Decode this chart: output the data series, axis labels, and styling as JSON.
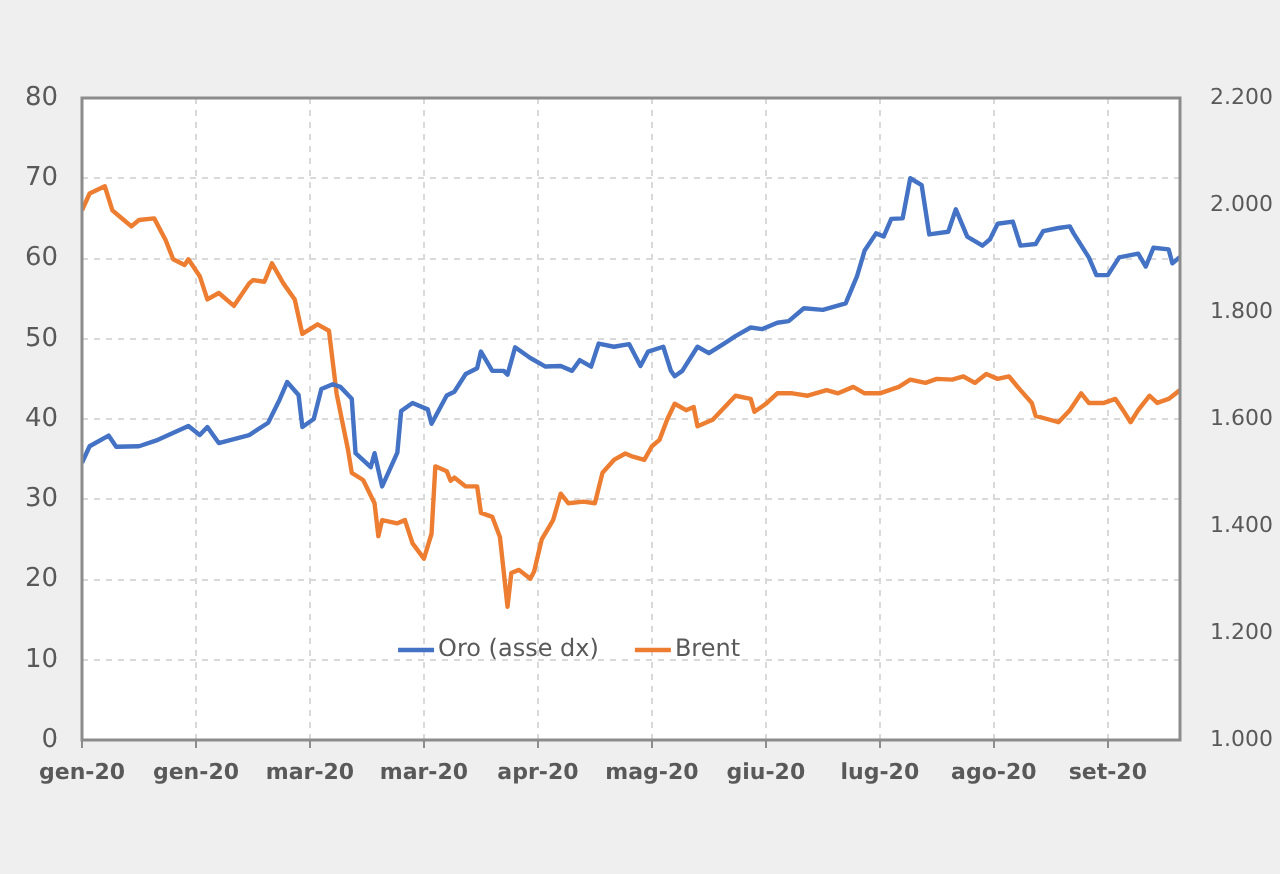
{
  "chart_data": {
    "type": "line",
    "xlim": [
      "2020-01-01",
      "2020-10-16"
    ],
    "xticks": [
      {
        "value": "2020-01-01",
        "label": "gen-20"
      },
      {
        "value": "2020-01-31",
        "label": "gen-20"
      },
      {
        "value": "2020-03-01",
        "label": "mar-20"
      },
      {
        "value": "2020-03-31",
        "label": "mar-20"
      },
      {
        "value": "2020-04-30",
        "label": "apr-20"
      },
      {
        "value": "2020-05-30",
        "label": "mag-20"
      },
      {
        "value": "2020-06-29",
        "label": "giu-20"
      },
      {
        "value": "2020-07-29",
        "label": "lug-20"
      },
      {
        "value": "2020-08-28",
        "label": "ago-20"
      },
      {
        "value": "2020-09-27",
        "label": "set-20"
      }
    ],
    "ylim": [
      0,
      80
    ],
    "yticks": [
      0,
      10,
      20,
      30,
      40,
      50,
      60,
      70,
      80
    ],
    "y2lim": [
      1000,
      2200
    ],
    "y2ticks": [
      {
        "value": 1000,
        "label": "1.000"
      },
      {
        "value": 1200,
        "label": "1.200"
      },
      {
        "value": 1400,
        "label": "1.400"
      },
      {
        "value": 1600,
        "label": "1.600"
      },
      {
        "value": 1800,
        "label": "1.800"
      },
      {
        "value": 2000,
        "label": "2.000"
      },
      {
        "value": 2200,
        "label": "2.200"
      }
    ],
    "grid": true,
    "legend": "bottom",
    "line_style": "solid",
    "marker": "none",
    "series": [
      {
        "name": "Oro (asse dx)",
        "color": "#4472c4",
        "axis": "y2",
        "x": [
          "2020-01-01",
          "2020-01-03",
          "2020-01-08",
          "2020-01-10",
          "2020-01-16",
          "2020-01-21",
          "2020-01-29",
          "2020-02-01",
          "2020-02-03",
          "2020-02-06",
          "2020-02-14",
          "2020-02-19",
          "2020-02-22",
          "2020-02-24",
          "2020-02-27",
          "2020-02-28",
          "2020-03-02",
          "2020-03-04",
          "2020-03-07",
          "2020-03-09",
          "2020-03-12",
          "2020-03-13",
          "2020-03-17",
          "2020-03-18",
          "2020-03-20",
          "2020-03-24",
          "2020-03-25",
          "2020-03-28",
          "2020-04-01",
          "2020-04-02",
          "2020-04-06",
          "2020-04-08",
          "2020-04-11",
          "2020-04-14",
          "2020-04-15",
          "2020-04-18",
          "2020-04-21",
          "2020-04-22",
          "2020-04-24",
          "2020-04-28",
          "2020-05-02",
          "2020-05-06",
          "2020-05-09",
          "2020-05-11",
          "2020-05-14",
          "2020-05-16",
          "2020-05-20",
          "2020-05-24",
          "2020-05-27",
          "2020-05-29",
          "2020-06-02",
          "2020-06-04",
          "2020-06-05",
          "2020-06-07",
          "2020-06-11",
          "2020-06-14",
          "2020-06-18",
          "2020-06-21",
          "2020-06-25",
          "2020-06-28",
          "2020-07-02",
          "2020-07-05",
          "2020-07-09",
          "2020-07-14",
          "2020-07-20",
          "2020-07-23",
          "2020-07-25",
          "2020-07-28",
          "2020-07-30",
          "2020-08-01",
          "2020-08-04",
          "2020-08-06",
          "2020-08-09",
          "2020-08-11",
          "2020-08-16",
          "2020-08-18",
          "2020-08-21",
          "2020-08-25",
          "2020-08-27",
          "2020-08-29",
          "2020-09-02",
          "2020-09-04",
          "2020-09-08",
          "2020-09-10",
          "2020-09-14",
          "2020-09-17",
          "2020-09-18",
          "2020-09-22",
          "2020-09-24",
          "2020-09-27",
          "2020-09-30",
          "2020-10-05",
          "2020-10-07",
          "2020-10-09",
          "2020-10-13",
          "2020-10-14",
          "2020-10-16"
        ],
        "values": [
          1518,
          1549,
          1569,
          1548,
          1549,
          1561,
          1587,
          1570,
          1585,
          1555,
          1570,
          1593,
          1636,
          1669,
          1645,
          1585,
          1600,
          1656,
          1665,
          1660,
          1638,
          1536,
          1510,
          1536,
          1474,
          1537,
          1615,
          1630,
          1618,
          1591,
          1644,
          1651,
          1684,
          1695,
          1726,
          1690,
          1690,
          1683,
          1734,
          1714,
          1698,
          1699,
          1690,
          1710,
          1698,
          1741,
          1735,
          1740,
          1699,
          1726,
          1735,
          1690,
          1680,
          1690,
          1735,
          1723,
          1741,
          1755,
          1771,
          1768,
          1780,
          1783,
          1807,
          1804,
          1816,
          1867,
          1915,
          1947,
          1941,
          1974,
          1975,
          2050,
          2037,
          1945,
          1950,
          1992,
          1941,
          1924,
          1936,
          1965,
          1969,
          1924,
          1927,
          1951,
          1957,
          1960,
          1947,
          1902,
          1869,
          1869,
          1902,
          1909,
          1885,
          1920,
          1917,
          1891,
          1903
        ]
      },
      {
        "name": "Brent",
        "color": "#ed7d31",
        "x": [
          "2020-01-01",
          "2020-01-03",
          "2020-01-07",
          "2020-01-09",
          "2020-01-12",
          "2020-01-14",
          "2020-01-16",
          "2020-01-20",
          "2020-01-23",
          "2020-01-25",
          "2020-01-28",
          "2020-01-29",
          "2020-02-01",
          "2020-02-03",
          "2020-02-06",
          "2020-02-10",
          "2020-02-14",
          "2020-02-15",
          "2020-02-18",
          "2020-02-20",
          "2020-02-23",
          "2020-02-26",
          "2020-02-28",
          "2020-03-03",
          "2020-03-06",
          "2020-03-08",
          "2020-03-11",
          "2020-03-12",
          "2020-03-15",
          "2020-03-18",
          "2020-03-19",
          "2020-03-20",
          "2020-03-24",
          "2020-03-26",
          "2020-03-28",
          "2020-03-31",
          "2020-04-02",
          "2020-04-03",
          "2020-04-06",
          "2020-04-07",
          "2020-04-08",
          "2020-04-11",
          "2020-04-14",
          "2020-04-15",
          "2020-04-18",
          "2020-04-20",
          "2020-04-22",
          "2020-04-23",
          "2020-04-25",
          "2020-04-28",
          "2020-04-29",
          "2020-05-01",
          "2020-05-03",
          "2020-05-04",
          "2020-05-06",
          "2020-05-08",
          "2020-05-12",
          "2020-05-15",
          "2020-05-17",
          "2020-05-20",
          "2020-05-23",
          "2020-05-25",
          "2020-05-28",
          "2020-05-30",
          "2020-06-01",
          "2020-06-03",
          "2020-06-05",
          "2020-06-08",
          "2020-06-10",
          "2020-06-11",
          "2020-06-15",
          "2020-06-19",
          "2020-06-21",
          "2020-06-25",
          "2020-06-26",
          "2020-06-29",
          "2020-07-02",
          "2020-07-06",
          "2020-07-10",
          "2020-07-15",
          "2020-07-18",
          "2020-07-22",
          "2020-07-25",
          "2020-07-29",
          "2020-08-03",
          "2020-08-06",
          "2020-08-10",
          "2020-08-13",
          "2020-08-17",
          "2020-08-20",
          "2020-08-23",
          "2020-08-26",
          "2020-08-29",
          "2020-09-01",
          "2020-09-04",
          "2020-09-07",
          "2020-09-08",
          "2020-09-11",
          "2020-09-14",
          "2020-09-17",
          "2020-09-20",
          "2020-09-22",
          "2020-09-26",
          "2020-09-29",
          "2020-10-01",
          "2020-10-03",
          "2020-10-05",
          "2020-10-08",
          "2020-10-10",
          "2020-10-13",
          "2020-10-16"
        ],
        "values": [
          66,
          68.1,
          69,
          66,
          64.8,
          64,
          64.8,
          65,
          62.3,
          59.9,
          59.2,
          59.9,
          57.8,
          54.9,
          55.7,
          54.1,
          56.9,
          57.3,
          57.1,
          59.4,
          56.9,
          54.9,
          50.6,
          51.8,
          51,
          43.2,
          36.2,
          33.3,
          32.4,
          29.5,
          25.4,
          27.4,
          27,
          27.4,
          24.5,
          22.6,
          25.7,
          34.1,
          33.5,
          32.3,
          32.7,
          31.6,
          31.6,
          28.3,
          27.8,
          25.3,
          16.6,
          20.8,
          21.2,
          20.1,
          21,
          25,
          26.6,
          27.4,
          30.7,
          29.5,
          29.7,
          29.5,
          33.3,
          34.9,
          35.7,
          35.3,
          34.9,
          36.6,
          37.4,
          39.9,
          41.9,
          41.1,
          41.5,
          39.1,
          39.9,
          41.9,
          42.9,
          42.5,
          40.9,
          41.9,
          43.2,
          43.2,
          42.9,
          43.6,
          43.2,
          44,
          43.2,
          43.2,
          44,
          44.9,
          44.5,
          45,
          44.9,
          45.3,
          44.5,
          45.6,
          45,
          45.3,
          43.6,
          42,
          40.4,
          40,
          39.6,
          41.1,
          43.2,
          42,
          42,
          42.5,
          41.1,
          39.6,
          41.1,
          42.9,
          42,
          42.5,
          43.6
        ]
      }
    ]
  }
}
